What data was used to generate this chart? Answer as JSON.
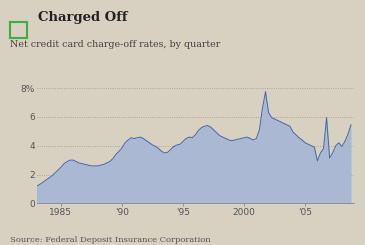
{
  "title": "Charged Off",
  "subtitle": "Net credit card charge-off rates, by quarter",
  "source": "Source: Federal Deposit Insurance Corporation",
  "fill_color": "#aab8d4",
  "line_color": "#4466aa",
  "background_color": "#d8d0c0",
  "legend_box_color": "#44aa44",
  "ylim": [
    0,
    8.5
  ],
  "yticks": [
    0,
    2,
    4,
    6,
    8
  ],
  "ytick_labels": [
    "0",
    "2",
    "4",
    "6",
    "8%"
  ],
  "xtick_years": [
    1985,
    1990,
    1995,
    2000,
    2005
  ],
  "xtick_labels": [
    "1985",
    "'90",
    "'95",
    "2000",
    "'05"
  ],
  "xlim_start": 1983.0,
  "xlim_end": 2009.0,
  "years": [
    1983.0,
    1983.25,
    1983.5,
    1983.75,
    1984.0,
    1984.25,
    1984.5,
    1984.75,
    1985.0,
    1985.25,
    1985.5,
    1985.75,
    1986.0,
    1986.25,
    1986.5,
    1986.75,
    1987.0,
    1987.25,
    1987.5,
    1987.75,
    1988.0,
    1988.25,
    1988.5,
    1988.75,
    1989.0,
    1989.25,
    1989.5,
    1989.75,
    1990.0,
    1990.25,
    1990.5,
    1990.75,
    1991.0,
    1991.25,
    1991.5,
    1991.75,
    1992.0,
    1992.25,
    1992.5,
    1992.75,
    1993.0,
    1993.25,
    1993.5,
    1993.75,
    1994.0,
    1994.25,
    1994.5,
    1994.75,
    1995.0,
    1995.25,
    1995.5,
    1995.75,
    1996.0,
    1996.25,
    1996.5,
    1996.75,
    1997.0,
    1997.25,
    1997.5,
    1997.75,
    1998.0,
    1998.25,
    1998.5,
    1998.75,
    1999.0,
    1999.25,
    1999.5,
    1999.75,
    2000.0,
    2000.25,
    2000.5,
    2000.75,
    2001.0,
    2001.25,
    2001.5,
    2001.75,
    2002.0,
    2002.25,
    2002.5,
    2002.75,
    2003.0,
    2003.25,
    2003.5,
    2003.75,
    2004.0,
    2004.25,
    2004.5,
    2004.75,
    2005.0,
    2005.25,
    2005.5,
    2005.75,
    2006.0,
    2006.25,
    2006.5,
    2006.75,
    2007.0,
    2007.25,
    2007.5,
    2007.75,
    2008.0,
    2008.25,
    2008.5,
    2008.75
  ],
  "values": [
    1.2,
    1.3,
    1.45,
    1.6,
    1.75,
    1.9,
    2.1,
    2.3,
    2.5,
    2.75,
    2.9,
    3.0,
    3.0,
    2.9,
    2.8,
    2.75,
    2.7,
    2.65,
    2.6,
    2.6,
    2.6,
    2.65,
    2.7,
    2.8,
    2.9,
    3.1,
    3.4,
    3.6,
    3.85,
    4.2,
    4.4,
    4.55,
    4.5,
    4.55,
    4.6,
    4.5,
    4.35,
    4.2,
    4.05,
    3.95,
    3.8,
    3.6,
    3.5,
    3.55,
    3.75,
    3.95,
    4.05,
    4.1,
    4.3,
    4.5,
    4.6,
    4.55,
    4.75,
    5.05,
    5.25,
    5.35,
    5.4,
    5.3,
    5.1,
    4.9,
    4.7,
    4.6,
    4.5,
    4.4,
    4.35,
    4.4,
    4.45,
    4.5,
    4.55,
    4.6,
    4.5,
    4.4,
    4.5,
    5.1,
    6.6,
    7.75,
    6.3,
    5.95,
    5.85,
    5.75,
    5.65,
    5.55,
    5.45,
    5.35,
    4.95,
    4.75,
    4.55,
    4.4,
    4.2,
    4.1,
    4.0,
    3.9,
    2.95,
    3.5,
    3.8,
    5.95,
    3.15,
    3.5,
    4.0,
    4.2,
    3.95,
    4.3,
    4.8,
    5.45
  ]
}
